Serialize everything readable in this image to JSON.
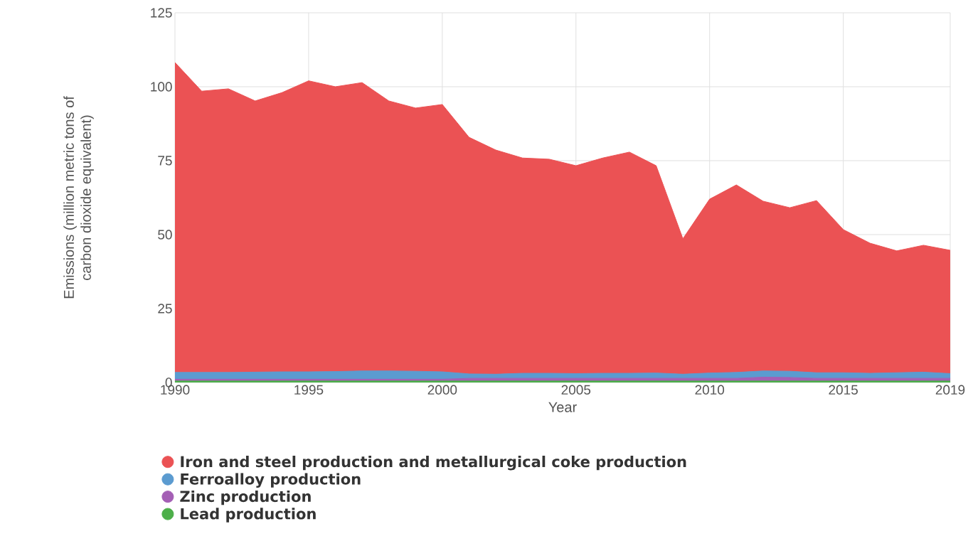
{
  "chart_data": {
    "type": "area",
    "stacked": true,
    "xlabel": "Year",
    "ylabel": "Emissions (million metric tons of carbon dioxide equivalent)",
    "x": [
      1990,
      1991,
      1992,
      1993,
      1994,
      1995,
      1996,
      1997,
      1998,
      1999,
      2000,
      2001,
      2002,
      2003,
      2004,
      2005,
      2006,
      2007,
      2008,
      2009,
      2010,
      2011,
      2012,
      2013,
      2014,
      2015,
      2016,
      2017,
      2018,
      2019
    ],
    "series": [
      {
        "name": "Lead production",
        "color": "#4daf4a",
        "values": [
          0.5,
          0.5,
          0.5,
          0.5,
          0.5,
          0.5,
          0.5,
          0.5,
          0.5,
          0.5,
          0.5,
          0.5,
          0.5,
          0.5,
          0.5,
          0.5,
          0.5,
          0.5,
          0.5,
          0.5,
          0.5,
          0.5,
          0.5,
          0.5,
          0.5,
          0.5,
          0.5,
          0.5,
          0.5,
          0.5
        ]
      },
      {
        "name": "Zinc production",
        "color": "#a45fb5",
        "values": [
          0.6,
          0.6,
          0.6,
          0.6,
          0.6,
          0.6,
          0.6,
          0.6,
          0.6,
          0.6,
          0.6,
          0.9,
          0.9,
          0.9,
          0.9,
          0.9,
          0.9,
          0.9,
          0.9,
          0.9,
          0.9,
          0.9,
          1.3,
          1.2,
          0.9,
          0.9,
          0.9,
          0.9,
          0.9,
          0.9
        ]
      },
      {
        "name": "Ferroalloy production",
        "color": "#5b9bd0",
        "values": [
          2.3,
          2.3,
          2.3,
          2.4,
          2.5,
          2.5,
          2.6,
          2.8,
          2.8,
          2.7,
          2.5,
          1.5,
          1.4,
          1.7,
          1.7,
          1.6,
          1.7,
          1.7,
          1.8,
          1.4,
          1.8,
          2.0,
          2.1,
          2.1,
          1.9,
          1.9,
          1.7,
          1.9,
          2.1,
          1.6
        ]
      },
      {
        "name": "Iron and steel production and metallurgical coke production",
        "color": "#eb5254",
        "values": [
          104.8,
          95.1,
          95.9,
          91.7,
          94.4,
          98.4,
          96.3,
          97.5,
          91.3,
          89.0,
          90.4,
          80.0,
          75.8,
          72.8,
          72.4,
          70.3,
          72.8,
          74.8,
          70.1,
          45.8,
          58.8,
          63.4,
          57.4,
          55.3,
          58.2,
          48.4,
          44.0,
          41.2,
          42.9,
          41.7
        ]
      }
    ],
    "xlim": [
      1990,
      2019
    ],
    "xticks": [
      1990,
      1995,
      2000,
      2005,
      2010,
      2015,
      2019
    ],
    "ylim": [
      0,
      125
    ],
    "yticks": [
      0,
      25,
      50,
      75,
      100,
      125
    ],
    "grid": true,
    "legend": "bottom"
  }
}
